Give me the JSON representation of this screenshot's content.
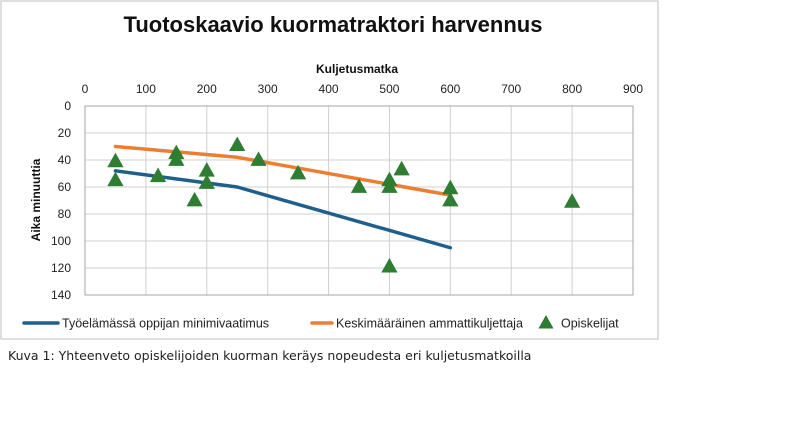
{
  "chart_data": {
    "type": "line",
    "title": "Tuotoskaavio kuormatraktori harvennus",
    "xlabel": "Kuljetusmatka",
    "ylabel": "Aika minuuttia",
    "x_ticks": [
      "0",
      "100",
      "200",
      "300",
      "400",
      "500",
      "600",
      "700",
      "800",
      "900"
    ],
    "y_ticks": [
      "0",
      "20",
      "40",
      "60",
      "80",
      "100",
      "120",
      "140"
    ],
    "xlim": [
      0,
      900
    ],
    "ylim": [
      0,
      140
    ],
    "x_axis_position": "top",
    "y_axis_inverted": true,
    "grid": true,
    "legend_position": "bottom",
    "series": [
      {
        "name": "Työelämässä oppijan minimivaatimus",
        "kind": "line",
        "color": "#1f5f8b",
        "points": [
          [
            50,
            48
          ],
          [
            250,
            60
          ],
          [
            600,
            105
          ]
        ]
      },
      {
        "name": "Keskimääräinen ammattikuljettaja",
        "kind": "line",
        "color": "#ed7d31",
        "points": [
          [
            50,
            30
          ],
          [
            250,
            38
          ],
          [
            600,
            66
          ]
        ]
      },
      {
        "name": "Opiskelijat",
        "kind": "scatter",
        "color": "#2e7d32",
        "points": [
          [
            50,
            41
          ],
          [
            50,
            55
          ],
          [
            120,
            52
          ],
          [
            150,
            35
          ],
          [
            150,
            40
          ],
          [
            180,
            70
          ],
          [
            200,
            48
          ],
          [
            200,
            57
          ],
          [
            250,
            29
          ],
          [
            285,
            40
          ],
          [
            350,
            50
          ],
          [
            450,
            60
          ],
          [
            500,
            55
          ],
          [
            500,
            60
          ],
          [
            500,
            119
          ],
          [
            520,
            47
          ],
          [
            600,
            61
          ],
          [
            600,
            70
          ],
          [
            800,
            71
          ]
        ]
      }
    ]
  },
  "caption": "Kuva 1: Yhteenveto opiskelijoiden kuorman keräys nopeudesta eri kuljetusmatkoilla",
  "colors": {
    "frame": "#bfbfbf",
    "grid": "#d0d0d0",
    "plot_border": "#a6a6a6"
  }
}
